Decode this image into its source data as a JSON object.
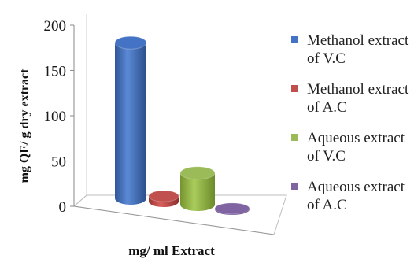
{
  "chart_data": {
    "type": "bar",
    "title": "",
    "xlabel": "mg/ ml Extract",
    "ylabel": "mg QE/ g dry extract",
    "ylim": [
      0,
      200
    ],
    "yticks": [
      "0",
      "50",
      "100",
      "150",
      "200"
    ],
    "grid": false,
    "legend_position": "right",
    "style": "3d-cylinder",
    "series": [
      {
        "name": "Methanol extract of V.C",
        "value": 172,
        "color": "#4472C4"
      },
      {
        "name": "Methanol extract of A.C",
        "value": 6,
        "color": "#C0504D"
      },
      {
        "name": "Aqueous extract of V.C",
        "value": 35,
        "color": "#9BBB59"
      },
      {
        "name": "Aqueous extract of A.C",
        "value": 1,
        "color": "#8064A2"
      }
    ]
  }
}
